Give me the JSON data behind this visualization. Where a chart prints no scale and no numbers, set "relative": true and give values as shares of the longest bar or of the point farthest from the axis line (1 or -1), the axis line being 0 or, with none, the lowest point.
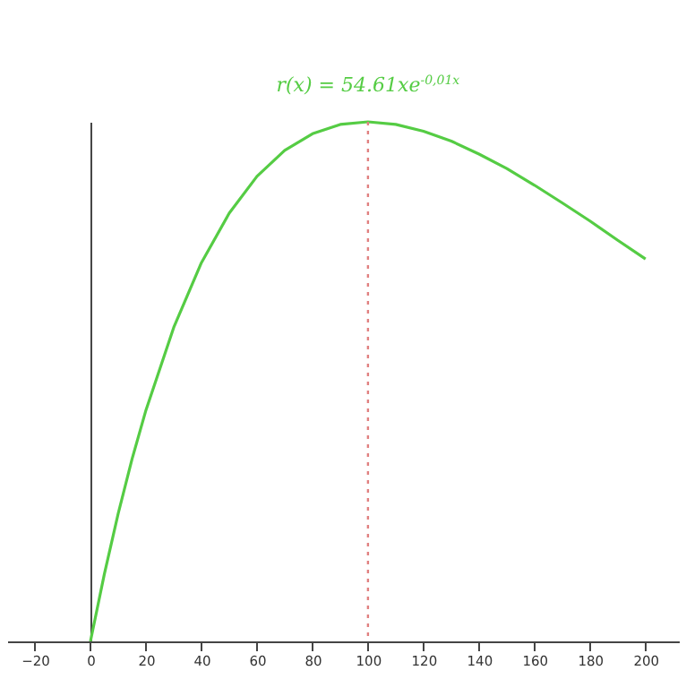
{
  "chart_data": {
    "type": "line",
    "relative": true,
    "legend": false,
    "grid": false,
    "marker": "none",
    "line_style": "solid",
    "x": [
      0,
      5,
      10,
      15,
      20,
      30,
      40,
      50,
      60,
      70,
      80,
      90,
      100,
      110,
      120,
      130,
      140,
      150,
      160,
      170,
      180,
      190,
      200
    ],
    "xlim": [
      -30,
      212
    ],
    "xticks": [
      -20,
      0,
      20,
      40,
      60,
      80,
      100,
      120,
      140,
      160,
      180,
      200
    ],
    "series": [
      {
        "name": "r(x) = 54.61xe$^{-0,01x}$",
        "color": "#55cc44",
        "values": [
          0,
          0.129,
          0.246,
          0.351,
          0.445,
          0.604,
          0.729,
          0.824,
          0.895,
          0.945,
          0.977,
          0.995,
          1,
          0.995,
          0.982,
          0.963,
          0.938,
          0.91,
          0.878,
          0.844,
          0.809,
          0.772,
          0.736
        ]
      }
    ],
    "ref_lines": [
      {
        "axis": "x",
        "value": 100,
        "color": "#e08080",
        "line_style": "dotted"
      }
    ]
  }
}
